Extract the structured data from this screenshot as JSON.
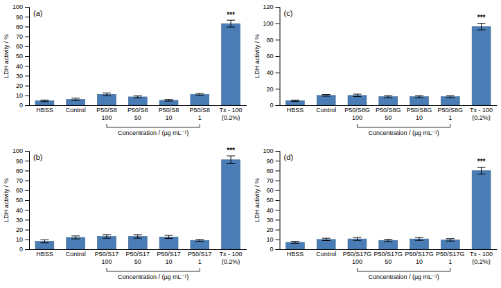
{
  "chart_data": [
    {
      "type": "bar",
      "title": "(a)",
      "categories": [
        "HBSS",
        "Control",
        "P50/S8\n100",
        "P50/S8\n50",
        "P50/S8\n10",
        "P50/S8\n1",
        "Tx - 100\n(0.2%)"
      ],
      "values": [
        4.5,
        6.0,
        11.0,
        8.5,
        5.0,
        11.0,
        83.0
      ],
      "errors": [
        0.8,
        1.2,
        1.5,
        1.0,
        0.8,
        1.0,
        3.5
      ],
      "color": "#4a7db5",
      "ylim": [
        0,
        100
      ],
      "yticks": [
        0,
        10,
        20,
        30,
        40,
        50,
        60,
        70,
        80,
        90,
        100
      ],
      "y_label": "LDH activity / %",
      "grid": false,
      "annotations": [
        {
          "text": "***",
          "category": "Tx - 100\n(0.2%)"
        },
        {
          "text": "Concentration / (μg mL⁻¹)",
          "from": "P50/S8\n100",
          "to": "P50/S8\n1"
        }
      ]
    },
    {
      "type": "bar",
      "title": "(c)",
      "categories": [
        "HBSS",
        "Control",
        "P50/S8G\n100",
        "P50/S8G\n50",
        "P50/S8G\n10",
        "P50/S8G\n1",
        "Tx - 100\n(0.2%)"
      ],
      "values": [
        5.5,
        12.0,
        12.0,
        10.5,
        10.5,
        10.5,
        96.0
      ],
      "errors": [
        0.8,
        1.0,
        1.5,
        1.2,
        1.2,
        1.2,
        4.0
      ],
      "color": "#4a7db5",
      "ylim": [
        0,
        120
      ],
      "yticks": [
        0,
        20,
        40,
        60,
        80,
        100,
        120
      ],
      "y_label": "LDH activity / %",
      "grid": false,
      "annotations": [
        {
          "text": "***",
          "category": "Tx - 100\n(0.2%)"
        },
        {
          "text": "Concentration / (μg mL⁻¹)",
          "from": "P50/S8G\n100",
          "to": "P50/S8G\n1"
        }
      ]
    },
    {
      "type": "bar",
      "title": "(b)",
      "categories": [
        "HBSS",
        "Control",
        "P50/S17\n100",
        "P50/S17\n50",
        "P50/S17\n10",
        "P50/S17\n1",
        "Tx - 100\n(0.2%)"
      ],
      "values": [
        8.0,
        12.0,
        13.0,
        13.0,
        12.5,
        9.0,
        91.0
      ],
      "errors": [
        1.5,
        1.5,
        1.8,
        1.8,
        1.5,
        1.0,
        4.0
      ],
      "color": "#4a7db5",
      "ylim": [
        0,
        100
      ],
      "yticks": [
        0,
        10,
        20,
        30,
        40,
        50,
        60,
        70,
        80,
        90,
        100
      ],
      "y_label": "LDH activity / %",
      "grid": false,
      "annotations": [
        {
          "text": "***",
          "category": "Tx - 100\n(0.2%)"
        },
        {
          "text": "Concentration / (μg mL⁻¹)",
          "from": "P50/S17\n100",
          "to": "P50/S17\n1"
        }
      ]
    },
    {
      "type": "bar",
      "title": "(d)",
      "categories": [
        "HBSS",
        "Control",
        "P50/S17G\n100",
        "P50/S17G\n50",
        "P50/S17G\n10",
        "P50/S17G\n1",
        "Tx - 100\n(0.2%)"
      ],
      "values": [
        7.0,
        10.0,
        10.5,
        9.0,
        10.5,
        9.5,
        80.0
      ],
      "errors": [
        1.0,
        1.2,
        1.5,
        1.2,
        1.5,
        1.2,
        3.5
      ],
      "color": "#4a7db5",
      "ylim": [
        0,
        100
      ],
      "yticks": [
        0,
        10,
        20,
        30,
        40,
        50,
        60,
        70,
        80,
        90,
        100
      ],
      "y_label": "LDH activity / %",
      "grid": false,
      "annotations": [
        {
          "text": "***",
          "category": "Tx - 100\n(0.2%)"
        },
        {
          "text": "Concentration / (μg mL⁻¹)",
          "from": "P50/S17G\n100",
          "to": "P50/S17G\n1"
        }
      ]
    }
  ]
}
